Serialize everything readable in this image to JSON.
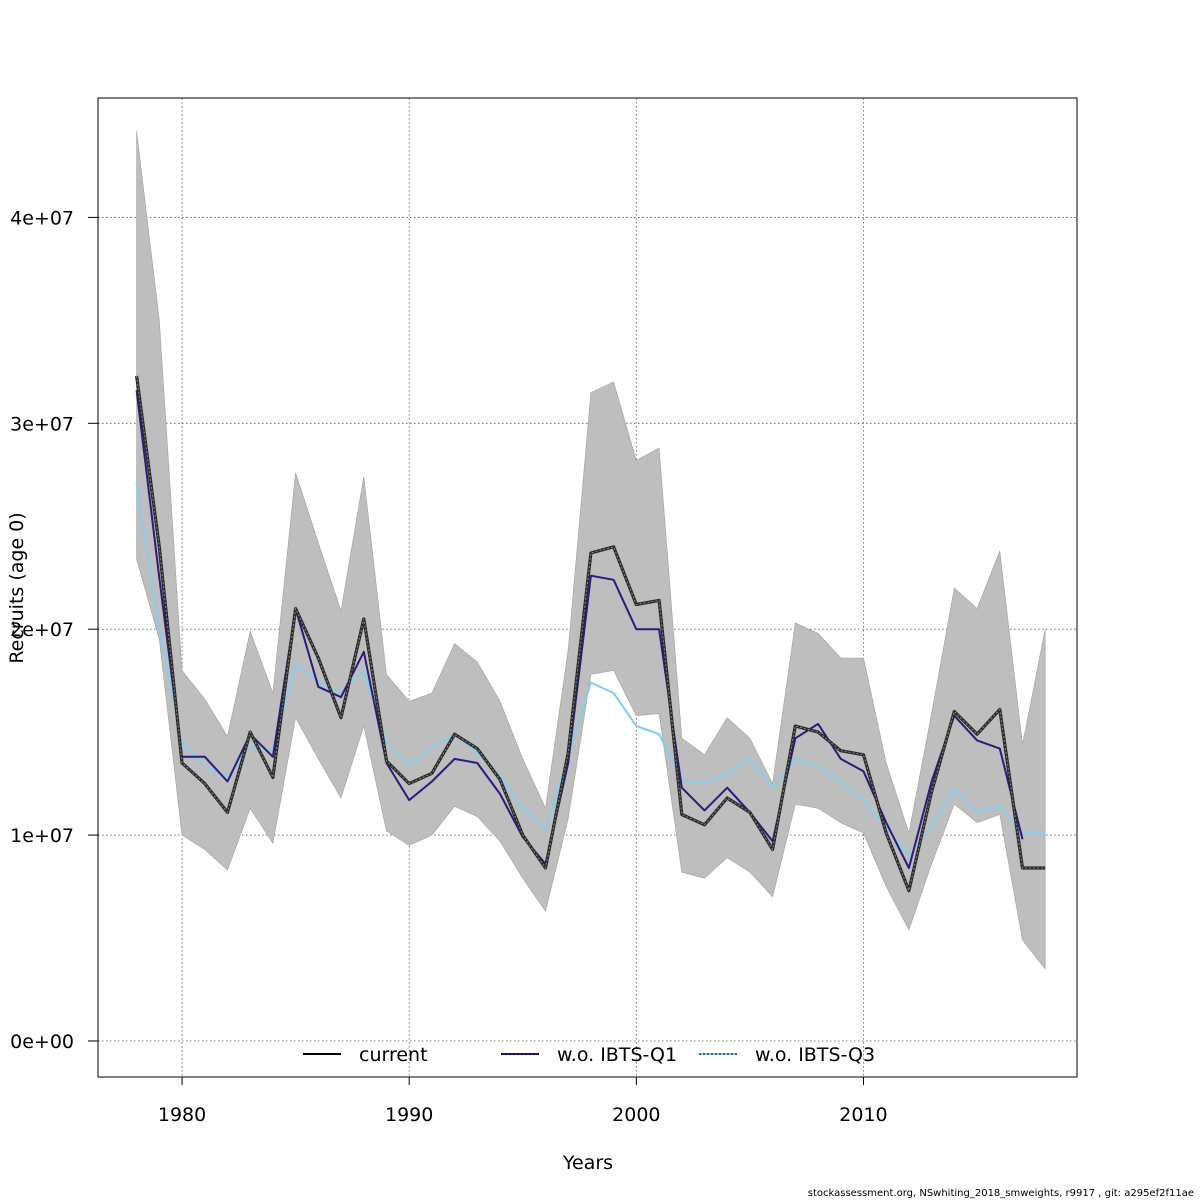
{
  "chart_data": {
    "type": "line",
    "xlabel": "Years",
    "ylabel": "Recruits (age 0)",
    "xlim": [
      1976.3,
      2019.4
    ],
    "ylim": [
      -1750000,
      45800000
    ],
    "x_ticks": [
      1980,
      1990,
      2000,
      2010
    ],
    "y_ticks": [
      0,
      10000000,
      20000000,
      30000000,
      40000000
    ],
    "y_tick_labels": [
      "0e+00",
      "1e+07",
      "2e+07",
      "3e+07",
      "4e+07"
    ],
    "grid": true,
    "legend_position": "bottom",
    "x": [
      1978,
      1979,
      1980,
      1981,
      1982,
      1983,
      1984,
      1985,
      1986,
      1987,
      1988,
      1989,
      1990,
      1991,
      1992,
      1993,
      1994,
      1995,
      1996,
      1997,
      1998,
      1999,
      2000,
      2001,
      2002,
      2003,
      2004,
      2005,
      2006,
      2007,
      2008,
      2009,
      2010,
      2011,
      2012,
      2013,
      2014,
      2015,
      2016,
      2017,
      2018
    ],
    "band": {
      "upper": [
        44200000,
        35000000,
        18000000,
        16600000,
        14800000,
        19900000,
        16900000,
        27600000,
        24200000,
        20900000,
        27400000,
        17800000,
        16500000,
        16900000,
        19300000,
        18400000,
        16500000,
        13700000,
        11300000,
        19000000,
        31500000,
        32000000,
        28200000,
        28800000,
        14700000,
        13900000,
        15700000,
        14700000,
        12500000,
        20300000,
        19800000,
        18600000,
        18600000,
        13500000,
        10100000,
        15900000,
        22000000,
        21000000,
        23800000,
        14400000,
        20000000
      ],
      "lower": [
        23400000,
        19500000,
        10000000,
        9300000,
        8300000,
        11300000,
        9600000,
        15700000,
        13700000,
        11800000,
        15300000,
        10200000,
        9500000,
        10000000,
        11400000,
        10900000,
        9700000,
        7900000,
        6300000,
        10800000,
        17800000,
        18000000,
        15800000,
        15900000,
        8200000,
        7900000,
        8900000,
        8200000,
        7000000,
        11500000,
        11300000,
        10600000,
        10100000,
        7500000,
        5400000,
        8600000,
        11500000,
        10600000,
        11000000,
        4900000,
        3500000
      ]
    },
    "series": [
      {
        "name": "current",
        "color": "#000000",
        "values": [
          32300000,
          24000000,
          13500000,
          12500000,
          11100000,
          15000000,
          12800000,
          21000000,
          18600000,
          15700000,
          20500000,
          13600000,
          12500000,
          13000000,
          14900000,
          14200000,
          12700000,
          10000000,
          8400000,
          14000000,
          23700000,
          24000000,
          21200000,
          21400000,
          11000000,
          10500000,
          11800000,
          11100000,
          9300000,
          15300000,
          15000000,
          14100000,
          13900000,
          10100000,
          7300000,
          12100000,
          16000000,
          14900000,
          16100000,
          8400000,
          8400000
        ]
      },
      {
        "name": "w.o. IBTS-Q1",
        "color": "#2b1a7f",
        "values": [
          31600000,
          22500000,
          13800000,
          13800000,
          12600000,
          14900000,
          13800000,
          21000000,
          17200000,
          16700000,
          18900000,
          13500000,
          11700000,
          12600000,
          13700000,
          13500000,
          12000000,
          9900000,
          8600000,
          13500000,
          22600000,
          22400000,
          20000000,
          20000000,
          12300000,
          11200000,
          12300000,
          11100000,
          9700000,
          14700000,
          15400000,
          13700000,
          13100000,
          10600000,
          8400000,
          12600000,
          15800000,
          14600000,
          14200000,
          9800000,
          null
        ]
      },
      {
        "name": "w.o. IBTS-Q3",
        "color": "#87ceeb",
        "values": [
          27100000,
          20000000,
          14500000,
          13300000,
          12800000,
          14300000,
          14100000,
          18300000,
          17500000,
          16900000,
          18000000,
          14500000,
          13400000,
          14300000,
          14900000,
          14000000,
          12900000,
          11300000,
          10300000,
          13800000,
          17400000,
          16900000,
          15300000,
          14900000,
          12700000,
          12500000,
          13000000,
          13700000,
          12300000,
          13700000,
          13300000,
          12600000,
          11700000,
          10400000,
          9000000,
          10500000,
          12200000,
          11100000,
          11400000,
          10100000,
          10100000
        ]
      }
    ]
  },
  "footer": "stockassessment.org, NSwhiting_2018_smweights, r9917 , git: a295ef2f11ae"
}
